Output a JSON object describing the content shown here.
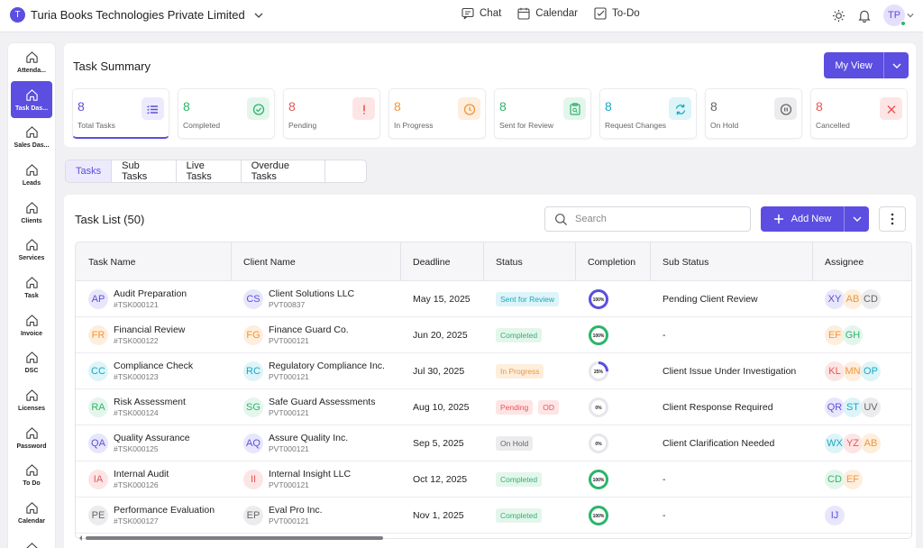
{
  "org": {
    "initial": "T",
    "name": "Turia Books Technologies Private Limited"
  },
  "topnav": [
    {
      "icon": "chat-icon",
      "label": "Chat"
    },
    {
      "icon": "calendar-icon",
      "label": "Calendar"
    },
    {
      "icon": "todo-icon",
      "label": "To-Do"
    }
  ],
  "user": {
    "initials": "TP"
  },
  "sidebar": [
    {
      "label": "Attenda...",
      "active": false
    },
    {
      "label": "Task Das...",
      "active": true
    },
    {
      "label": "Sales Das...",
      "active": false
    },
    {
      "label": "Leads",
      "active": false
    },
    {
      "label": "Clients",
      "active": false
    },
    {
      "label": "Services",
      "active": false
    },
    {
      "label": "Task",
      "active": false
    },
    {
      "label": "Invoice",
      "active": false
    },
    {
      "label": "DSC",
      "active": false
    },
    {
      "label": "Licenses",
      "active": false
    },
    {
      "label": "Password",
      "active": false
    },
    {
      "label": "To Do",
      "active": false
    },
    {
      "label": "Calendar",
      "active": false
    },
    {
      "label": "",
      "active": false
    }
  ],
  "summary": {
    "title": "Task Summary",
    "view_label": "My View",
    "cards": [
      {
        "value": "8",
        "label": "Total Tasks",
        "color": "#5b4ee0",
        "bg": "#eceafc",
        "icon": "list-icon"
      },
      {
        "value": "8",
        "label": "Completed",
        "color": "#2cb56a",
        "bg": "#e4f6ec",
        "icon": "check-circle-icon"
      },
      {
        "value": "8",
        "label": "Pending",
        "color": "#e85454",
        "bg": "#fde5e5",
        "icon": "exclamation-icon"
      },
      {
        "value": "8",
        "label": "In Progress",
        "color": "#f0963a",
        "bg": "#fdeedd",
        "icon": "clock-icon"
      },
      {
        "value": "8",
        "label": "Sent for Review",
        "color": "#2cb56a",
        "bg": "#e4f6ec",
        "icon": "clipboard-search-icon"
      },
      {
        "value": "8",
        "label": "Request Changes",
        "color": "#17a9c4",
        "bg": "#ddf4f8",
        "icon": "refresh-icon"
      },
      {
        "value": "8",
        "label": "On Hold",
        "color": "#666666",
        "bg": "#ececef",
        "icon": "pause-icon"
      },
      {
        "value": "8",
        "label": "Cancelled",
        "color": "#e85454",
        "bg": "#fde5e5",
        "icon": "x-icon"
      }
    ]
  },
  "tabs": [
    {
      "label": "Tasks",
      "active": true
    },
    {
      "label": "Sub Tasks",
      "active": false
    },
    {
      "label": "Live Tasks",
      "active": false
    },
    {
      "label": "Overdue Tasks",
      "active": false
    },
    {
      "label": "",
      "active": false
    }
  ],
  "list": {
    "title": "Task List (50)",
    "search_placeholder": "Search",
    "add_label": "Add New",
    "columns": [
      "Task Name",
      "Client Name",
      "Deadline",
      "Status",
      "Completion",
      "Sub Status",
      "Assignee"
    ],
    "rows": [
      {
        "task_initials": "AP",
        "task_bg": "#e8e6fb",
        "task_fg": "#5b4ee0",
        "task": "Audit Preparation",
        "task_id": "#TSK000121",
        "client_initials": "CS",
        "client_bg": "#e8e6fb",
        "client_fg": "#5b4ee0",
        "client": "Client Solutions LLC",
        "client_id": "PVT00837",
        "deadline": "May 15, 2025",
        "status": "Sent for Review",
        "status_bg": "#ddf4f8",
        "status_fg": "#17a9c4",
        "od": "",
        "completion": 100,
        "completion_text": "100%",
        "ring_color": "#5b4ee0",
        "sub_status": "Pending Client Review",
        "assignees": [
          {
            "i": "XY",
            "bg": "#e8e6fb",
            "fg": "#5b4ee0"
          },
          {
            "i": "AB",
            "bg": "#fdeedd",
            "fg": "#f0963a"
          },
          {
            "i": "CD",
            "bg": "#ececef",
            "fg": "#666666"
          }
        ]
      },
      {
        "task_initials": "FR",
        "task_bg": "#fdeedd",
        "task_fg": "#f0963a",
        "task": "Financial Review",
        "task_id": "#TSK000122",
        "client_initials": "FG",
        "client_bg": "#fdeedd",
        "client_fg": "#f0963a",
        "client": "Finance Guard Co.",
        "client_id": "PVT000121",
        "deadline": "Jun 20, 2025",
        "status": "Completed",
        "status_bg": "#e4f6ec",
        "status_fg": "#2cb56a",
        "od": "",
        "completion": 100,
        "completion_text": "100%",
        "ring_color": "#2cb56a",
        "sub_status": "-",
        "assignees": [
          {
            "i": "EF",
            "bg": "#fdeedd",
            "fg": "#f0963a"
          },
          {
            "i": "GH",
            "bg": "#e4f6ec",
            "fg": "#2cb56a"
          }
        ]
      },
      {
        "task_initials": "CC",
        "task_bg": "#ddf4f8",
        "task_fg": "#17a9c4",
        "task": "Compliance Check",
        "task_id": "#TSK000123",
        "client_initials": "RC",
        "client_bg": "#ddf4f8",
        "client_fg": "#17a9c4",
        "client": "Regulatory Compliance Inc.",
        "client_id": "PVT000121",
        "deadline": "Jul 30, 2025",
        "status": "In Progress",
        "status_bg": "#fdeedd",
        "status_fg": "#f0963a",
        "od": "",
        "completion": 25,
        "completion_text": "25%",
        "ring_color": "#5b4ee0",
        "sub_status": "Client Issue Under Investigation",
        "assignees": [
          {
            "i": "KL",
            "bg": "#fde5e5",
            "fg": "#e85454"
          },
          {
            "i": "MN",
            "bg": "#fdeedd",
            "fg": "#f0963a"
          },
          {
            "i": "OP",
            "bg": "#ddf4f8",
            "fg": "#17a9c4"
          }
        ]
      },
      {
        "task_initials": "RA",
        "task_bg": "#e4f6ec",
        "task_fg": "#2cb56a",
        "task": "Risk Assessment",
        "task_id": "#TSK000124",
        "client_initials": "SG",
        "client_bg": "#e4f6ec",
        "client_fg": "#2cb56a",
        "client": "Safe Guard Assessments",
        "client_id": "PVT000121",
        "deadline": "Aug 10, 2025",
        "status": "Pending",
        "status_bg": "#fde5e5",
        "status_fg": "#e85454",
        "od": "OD",
        "completion": 0,
        "completion_text": "0%",
        "ring_color": "#5b4ee0",
        "sub_status": "Client Response Required",
        "assignees": [
          {
            "i": "QR",
            "bg": "#e8e6fb",
            "fg": "#5b4ee0"
          },
          {
            "i": "ST",
            "bg": "#ddf4f8",
            "fg": "#17a9c4"
          },
          {
            "i": "UV",
            "bg": "#ececef",
            "fg": "#666666"
          }
        ]
      },
      {
        "task_initials": "QA",
        "task_bg": "#e8e6fb",
        "task_fg": "#5b4ee0",
        "task": "Quality Assurance",
        "task_id": "#TSK000125",
        "client_initials": "AQ",
        "client_bg": "#e8e6fb",
        "client_fg": "#5b4ee0",
        "client": "Assure Quality Inc.",
        "client_id": "PVT000121",
        "deadline": "Sep 5, 2025",
        "status": "On Hold",
        "status_bg": "#ececef",
        "status_fg": "#666666",
        "od": "",
        "completion": 0,
        "completion_text": "0%",
        "ring_color": "#5b4ee0",
        "sub_status": "Client Clarification Needed",
        "assignees": [
          {
            "i": "WX",
            "bg": "#ddf4f8",
            "fg": "#17a9c4"
          },
          {
            "i": "YZ",
            "bg": "#fde5e5",
            "fg": "#e85454"
          },
          {
            "i": "AB",
            "bg": "#fdeedd",
            "fg": "#f0963a"
          }
        ]
      },
      {
        "task_initials": "IA",
        "task_bg": "#fde5e5",
        "task_fg": "#e85454",
        "task": "Internal Audit",
        "task_id": "#TSK000126",
        "client_initials": "II",
        "client_bg": "#fde5e5",
        "client_fg": "#e85454",
        "client": "Internal Insight LLC",
        "client_id": "PVT000121",
        "deadline": "Oct 12, 2025",
        "status": "Completed",
        "status_bg": "#e4f6ec",
        "status_fg": "#2cb56a",
        "od": "",
        "completion": 100,
        "completion_text": "100%",
        "ring_color": "#2cb56a",
        "sub_status": "-",
        "assignees": [
          {
            "i": "CD",
            "bg": "#e4f6ec",
            "fg": "#2cb56a"
          },
          {
            "i": "EF",
            "bg": "#fdeedd",
            "fg": "#f0963a"
          }
        ]
      },
      {
        "task_initials": "PE",
        "task_bg": "#ececef",
        "task_fg": "#666666",
        "task": "Performance Evaluation",
        "task_id": "#TSK000127",
        "client_initials": "EP",
        "client_bg": "#ececef",
        "client_fg": "#666666",
        "client": "Eval Pro Inc.",
        "client_id": "PVT000121",
        "deadline": "Nov 1, 2025",
        "status": "Completed",
        "status_bg": "#e4f6ec",
        "status_fg": "#2cb56a",
        "od": "",
        "completion": 100,
        "completion_text": "100%",
        "ring_color": "#2cb56a",
        "sub_status": "-",
        "assignees": [
          {
            "i": "IJ",
            "bg": "#e8e6fb",
            "fg": "#5b4ee0"
          }
        ]
      }
    ]
  }
}
